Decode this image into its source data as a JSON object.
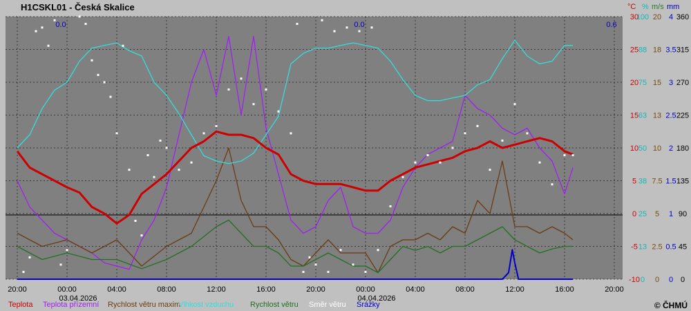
{
  "chart_data": {
    "type": "line",
    "title": "H1CSKL01 - Česká Skalice",
    "copyright": "© ČHMÚ",
    "unit_headers": [
      {
        "text": "°C",
        "color": "#cc0000"
      },
      {
        "text": "%",
        "color": "#10b8b8"
      },
      {
        "text": "m/s",
        "color": "#2a7a2a"
      },
      {
        "text": "mm",
        "color": "#0000cc"
      }
    ],
    "right_axes": [
      {
        "name": "temperature",
        "color": "#cc0000",
        "ticks": [
          "30",
          "25",
          "20",
          "15",
          "10",
          "5",
          "0",
          "-5",
          "-10"
        ]
      },
      {
        "name": "humidity",
        "color": "#10b8b8",
        "ticks": [
          "100",
          "88",
          "75",
          "63",
          "50",
          "38",
          "25",
          "13",
          "0"
        ]
      },
      {
        "name": "wind_speed",
        "color": "#7a4a10",
        "ticks": [
          "20",
          "18",
          "15",
          "13",
          "10",
          "7.5",
          "5",
          "2.5",
          "0"
        ]
      },
      {
        "name": "precipitation",
        "color": "#0000cc",
        "ticks": [
          "4",
          "3.5",
          "3",
          "2.5",
          "2",
          "1.5",
          "1",
          "0.5",
          "0"
        ]
      },
      {
        "name": "wind_direction",
        "color": "#000000",
        "ticks": [
          "360",
          "315",
          "270",
          "225",
          "180",
          "135",
          "90",
          "45",
          "0"
        ]
      }
    ],
    "x_ticks": [
      "20:00",
      "00:00",
      "04:00",
      "08:00",
      "12:00",
      "16:00",
      "20:00",
      "00:00",
      "04:00",
      "08:00",
      "12:00",
      "16:00",
      "20:00"
    ],
    "date_labels": [
      "03.04.2026",
      "04.04.2026"
    ],
    "precip_totals": [
      "0.0",
      "0.0",
      "0.6"
    ],
    "legend": [
      {
        "label": "Teplota",
        "color": "#cc0000"
      },
      {
        "label": "Teplota přízemní",
        "color": "#a020f0"
      },
      {
        "label": "Rychlost větru maxim",
        "color": "#6b3b10"
      },
      {
        "label": "Vlhkost vzduchu",
        "color": "#33dddd"
      },
      {
        "label": "Rychlost větru",
        "color": "#207020"
      },
      {
        "label": "Směr větru",
        "color": "#ffffff"
      },
      {
        "label": "Srážky",
        "color": "#0000cc"
      }
    ],
    "series": [
      {
        "name": "Teplota",
        "unit": "°C",
        "axis": "temperature",
        "color": "#cc0000",
        "points": [
          [
            0,
            9.5
          ],
          [
            1,
            7
          ],
          [
            2,
            6
          ],
          [
            3,
            5
          ],
          [
            4,
            4
          ],
          [
            5,
            3.2
          ],
          [
            6,
            1
          ],
          [
            7,
            0
          ],
          [
            8,
            -1.5
          ],
          [
            9,
            -0.2
          ],
          [
            10,
            3
          ],
          [
            11,
            4.5
          ],
          [
            12,
            6
          ],
          [
            13,
            8
          ],
          [
            14,
            10
          ],
          [
            15,
            11
          ],
          [
            16,
            12.5
          ],
          [
            17,
            12
          ],
          [
            18,
            12
          ],
          [
            19,
            11.5
          ],
          [
            20,
            10
          ],
          [
            21,
            9
          ],
          [
            22,
            6
          ],
          [
            23,
            5
          ],
          [
            24,
            4.5
          ],
          [
            25,
            4.5
          ],
          [
            26,
            4.5
          ],
          [
            27,
            4
          ],
          [
            28,
            3.5
          ],
          [
            29,
            3.5
          ],
          [
            30,
            5
          ],
          [
            31,
            6
          ],
          [
            32,
            7
          ],
          [
            33,
            7.5
          ],
          [
            34,
            8
          ],
          [
            35,
            8.5
          ],
          [
            36,
            9.5
          ],
          [
            37,
            10
          ],
          [
            38,
            11
          ],
          [
            39,
            10
          ],
          [
            40,
            10.5
          ],
          [
            41,
            11
          ],
          [
            42,
            11.5
          ],
          [
            43,
            11
          ],
          [
            44,
            9.5
          ],
          [
            44.67,
            9
          ]
        ]
      },
      {
        "name": "Teplota přízemní",
        "unit": "°C",
        "axis": "temperature",
        "color": "#a020f0",
        "points": [
          [
            0,
            5
          ],
          [
            1,
            1
          ],
          [
            2,
            -1
          ],
          [
            3,
            -3
          ],
          [
            4,
            -4
          ],
          [
            5,
            -5
          ],
          [
            6,
            -6
          ],
          [
            7,
            -7.5
          ],
          [
            8,
            -8
          ],
          [
            9,
            -8.5
          ],
          [
            10,
            -4
          ],
          [
            11,
            -1
          ],
          [
            12,
            4
          ],
          [
            13,
            12
          ],
          [
            14,
            20
          ],
          [
            15,
            25
          ],
          [
            16,
            18
          ],
          [
            17,
            27
          ],
          [
            18,
            15
          ],
          [
            19,
            27
          ],
          [
            20,
            13
          ],
          [
            21,
            6
          ],
          [
            22,
            -1
          ],
          [
            23,
            -3
          ],
          [
            24,
            -2
          ],
          [
            25,
            2
          ],
          [
            26,
            4
          ],
          [
            27,
            -2
          ],
          [
            28,
            -3
          ],
          [
            29,
            -3
          ],
          [
            30,
            -1
          ],
          [
            31,
            4
          ],
          [
            32,
            7
          ],
          [
            33,
            9
          ],
          [
            34,
            10
          ],
          [
            35,
            11
          ],
          [
            36,
            18
          ],
          [
            37,
            16
          ],
          [
            38,
            15
          ],
          [
            39,
            13
          ],
          [
            40,
            12
          ],
          [
            41,
            13
          ],
          [
            42,
            10
          ],
          [
            43,
            8
          ],
          [
            44,
            3
          ],
          [
            44.67,
            7
          ]
        ]
      },
      {
        "name": "Vlhkost vzduchu",
        "unit": "%",
        "axis": "humidity",
        "color": "#33dddd",
        "points": [
          [
            0,
            50
          ],
          [
            1,
            55
          ],
          [
            2,
            65
          ],
          [
            3,
            72
          ],
          [
            4,
            75
          ],
          [
            5,
            83
          ],
          [
            6,
            88
          ],
          [
            7,
            89
          ],
          [
            8,
            90
          ],
          [
            9,
            87
          ],
          [
            10,
            85
          ],
          [
            11,
            75
          ],
          [
            12,
            70
          ],
          [
            13,
            63
          ],
          [
            14,
            55
          ],
          [
            15,
            47
          ],
          [
            16,
            45
          ],
          [
            17,
            44
          ],
          [
            18,
            45
          ],
          [
            19,
            48
          ],
          [
            20,
            55
          ],
          [
            21,
            62
          ],
          [
            22,
            82
          ],
          [
            23,
            86
          ],
          [
            24,
            88
          ],
          [
            25,
            88
          ],
          [
            26,
            89
          ],
          [
            27,
            90
          ],
          [
            28,
            89
          ],
          [
            29,
            88
          ],
          [
            30,
            83
          ],
          [
            31,
            76
          ],
          [
            32,
            70
          ],
          [
            33,
            68
          ],
          [
            34,
            68
          ],
          [
            35,
            69
          ],
          [
            36,
            70
          ],
          [
            37,
            74
          ],
          [
            38,
            76
          ],
          [
            39,
            84
          ],
          [
            40,
            91
          ],
          [
            41,
            85
          ],
          [
            42,
            82
          ],
          [
            43,
            83
          ],
          [
            44,
            89
          ],
          [
            44.67,
            89
          ]
        ]
      },
      {
        "name": "Rychlost větru maxim",
        "unit": "m/s",
        "axis": "wind_speed",
        "color": "#6b3b10",
        "points": [
          [
            0,
            3.5
          ],
          [
            2,
            2.5
          ],
          [
            4,
            3
          ],
          [
            6,
            2
          ],
          [
            8,
            3
          ],
          [
            10,
            1
          ],
          [
            12,
            2.5
          ],
          [
            14,
            3.5
          ],
          [
            16,
            7.5
          ],
          [
            17,
            10
          ],
          [
            18,
            6
          ],
          [
            19,
            4
          ],
          [
            20,
            4
          ],
          [
            21,
            3
          ],
          [
            22,
            1.5
          ],
          [
            23,
            1
          ],
          [
            24,
            2
          ],
          [
            25,
            3
          ],
          [
            26,
            2
          ],
          [
            27,
            2
          ],
          [
            28,
            2
          ],
          [
            29,
            0.5
          ],
          [
            30,
            2.5
          ],
          [
            31,
            3
          ],
          [
            32,
            3
          ],
          [
            33,
            3.5
          ],
          [
            34,
            3
          ],
          [
            35,
            4
          ],
          [
            36,
            3.5
          ],
          [
            37,
            6
          ],
          [
            38,
            5
          ],
          [
            39,
            9
          ],
          [
            40,
            4
          ],
          [
            41,
            4
          ],
          [
            42,
            3.5
          ],
          [
            43,
            4
          ],
          [
            44,
            3.5
          ],
          [
            44.67,
            3
          ]
        ]
      },
      {
        "name": "Rychlost větru",
        "unit": "m/s",
        "axis": "wind_speed",
        "color": "#207020",
        "points": [
          [
            0,
            2.5
          ],
          [
            2,
            1.5
          ],
          [
            4,
            2
          ],
          [
            6,
            1.5
          ],
          [
            8,
            1.5
          ],
          [
            10,
            0.8
          ],
          [
            12,
            1.5
          ],
          [
            14,
            2.5
          ],
          [
            16,
            4
          ],
          [
            17,
            4.5
          ],
          [
            18,
            3.5
          ],
          [
            19,
            2.5
          ],
          [
            20,
            2.5
          ],
          [
            21,
            2
          ],
          [
            22,
            1
          ],
          [
            23,
            1
          ],
          [
            24,
            1.5
          ],
          [
            25,
            2
          ],
          [
            26,
            1.5
          ],
          [
            27,
            1
          ],
          [
            28,
            1
          ],
          [
            29,
            0.5
          ],
          [
            30,
            1.5
          ],
          [
            31,
            2.5
          ],
          [
            32,
            2.2
          ],
          [
            33,
            2.5
          ],
          [
            34,
            2
          ],
          [
            35,
            2.5
          ],
          [
            36,
            2.5
          ],
          [
            37,
            3
          ],
          [
            38,
            3.5
          ],
          [
            39,
            4
          ],
          [
            40,
            3
          ],
          [
            41,
            2.5
          ],
          [
            42,
            2
          ],
          [
            43,
            2.3
          ],
          [
            44,
            2.5
          ],
          [
            44.67,
            2.5
          ]
        ]
      },
      {
        "name": "Srážky",
        "unit": "mm",
        "axis": "precipitation",
        "color": "#0000cc",
        "points": [
          [
            0,
            0
          ],
          [
            39,
            0
          ],
          [
            39.5,
            0.1
          ],
          [
            39.8,
            0.45
          ],
          [
            40,
            0.25
          ],
          [
            40.3,
            0
          ],
          [
            44.67,
            0
          ]
        ]
      }
    ],
    "scatter": {
      "name": "Směr větru",
      "unit": "°",
      "axis": "wind_direction",
      "color": "#ffffff",
      "points": [
        [
          0.5,
          10
        ],
        [
          1,
          30
        ],
        [
          1.5,
          340
        ],
        [
          2,
          345
        ],
        [
          2.5,
          320
        ],
        [
          3,
          355
        ],
        [
          3.5,
          20
        ],
        [
          4,
          40
        ],
        [
          5,
          360
        ],
        [
          5.5,
          350
        ],
        [
          6,
          300
        ],
        [
          6.5,
          280
        ],
        [
          7,
          270
        ],
        [
          7.5,
          250
        ],
        [
          8,
          200
        ],
        [
          8.5,
          320
        ],
        [
          9,
          150
        ],
        [
          9.5,
          80
        ],
        [
          10,
          60
        ],
        [
          10.5,
          170
        ],
        [
          11,
          140
        ],
        [
          11.5,
          190
        ],
        [
          12,
          180
        ],
        [
          13,
          150
        ],
        [
          14,
          160
        ],
        [
          15,
          200
        ],
        [
          16,
          210
        ],
        [
          17,
          260
        ],
        [
          18,
          275
        ],
        [
          19,
          240
        ],
        [
          20,
          260
        ],
        [
          21,
          230
        ],
        [
          22,
          200
        ],
        [
          23,
          10
        ],
        [
          23.5,
          30
        ],
        [
          24,
          20
        ],
        [
          25,
          10
        ],
        [
          26,
          40
        ],
        [
          27,
          20
        ],
        [
          28,
          10
        ],
        [
          22.5,
          350
        ],
        [
          24.5,
          355
        ],
        [
          25.5,
          340
        ],
        [
          26.5,
          345
        ],
        [
          27.5,
          340
        ],
        [
          28.5,
          345
        ],
        [
          29,
          40
        ],
        [
          30,
          100
        ],
        [
          31,
          140
        ],
        [
          32,
          160
        ],
        [
          33,
          170
        ],
        [
          34,
          160
        ],
        [
          35,
          180
        ],
        [
          36,
          200
        ],
        [
          37,
          210
        ],
        [
          38,
          150
        ],
        [
          39,
          190
        ],
        [
          40,
          240
        ],
        [
          41,
          200
        ],
        [
          42,
          160
        ],
        [
          43,
          130
        ],
        [
          44,
          170
        ],
        [
          44.67,
          170
        ]
      ]
    }
  }
}
